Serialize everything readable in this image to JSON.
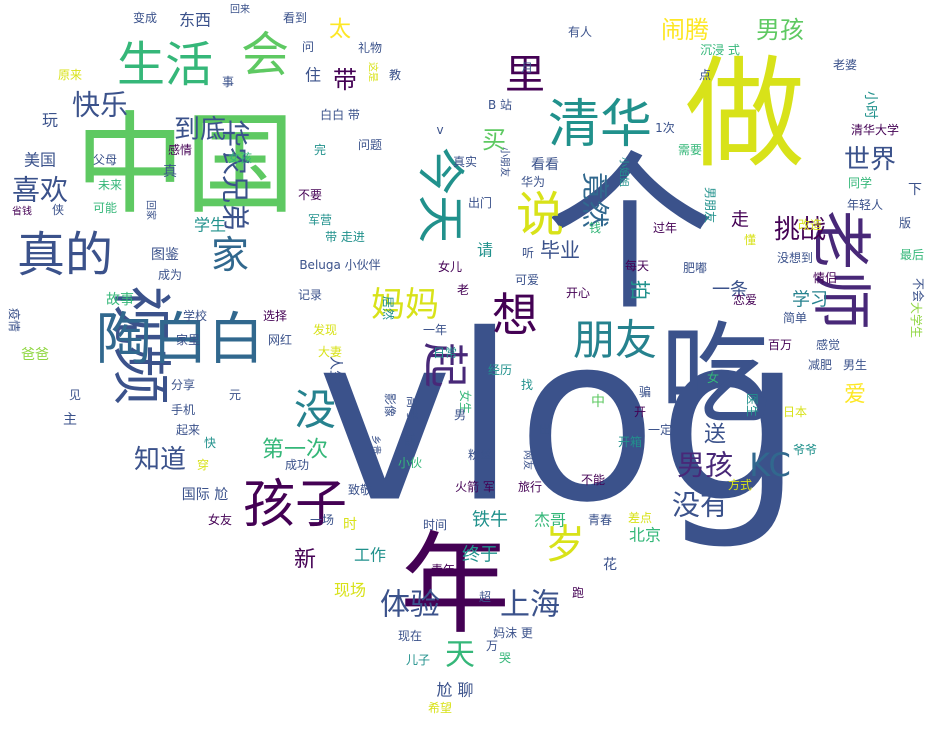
{
  "palette": [
    "#440154",
    "#3b528b",
    "#21918c",
    "#5ec962",
    "#fde725",
    "#482878",
    "#31688e",
    "#35b779",
    "#90d743",
    "#26828e"
  ],
  "words": [
    {
      "text": "vlog",
      "weight": 100,
      "color": "#3b528b"
    },
    {
      "text": "个",
      "weight": 88,
      "color": "#3b528b"
    },
    {
      "text": "中国",
      "weight": 86,
      "color": "#5ec962"
    },
    {
      "text": "做",
      "weight": 84,
      "color": "#d8e219"
    },
    {
      "text": "年",
      "weight": 80,
      "color": "#440154"
    },
    {
      "text": "吃",
      "weight": 78,
      "color": "#3b528b"
    },
    {
      "text": "老师",
      "weight": 60,
      "color": "#482878"
    },
    {
      "text": "视频",
      "weight": 58,
      "color": "#3b528b"
    },
    {
      "text": "陶白白",
      "weight": 56,
      "color": "#31688e"
    },
    {
      "text": "孩子",
      "weight": 54,
      "color": "#440154"
    },
    {
      "text": "清华",
      "weight": 52,
      "color": "#21918c"
    },
    {
      "text": "生活",
      "weight": 50,
      "color": "#35b779"
    },
    {
      "text": "会",
      "weight": 50,
      "color": "#5ec962"
    },
    {
      "text": "今天",
      "weight": 48,
      "color": "#21918c"
    },
    {
      "text": "想",
      "weight": 48,
      "color": "#440154"
    },
    {
      "text": "真的",
      "weight": 48,
      "color": "#3b528b"
    },
    {
      "text": "说",
      "weight": 48,
      "color": "#d8e219"
    },
    {
      "text": "起",
      "weight": 46,
      "color": "#482878"
    },
    {
      "text": "岁",
      "weight": 44,
      "color": "#d8e219"
    },
    {
      "text": "朋友",
      "weight": 44,
      "color": "#26828e"
    },
    {
      "text": "没",
      "weight": 44,
      "color": "#26828e"
    },
    {
      "text": "里",
      "weight": 42,
      "color": "#440154"
    },
    {
      "text": "家",
      "weight": 40,
      "color": "#31688e"
    },
    {
      "text": "妈妈",
      "weight": 36,
      "color": "#d8e219"
    },
    {
      "text": "KC",
      "weight": 34,
      "color": "#31688e"
    },
    {
      "text": "体验",
      "weight": 34,
      "color": "#3b528b"
    },
    {
      "text": "上海",
      "weight": 34,
      "color": "#3b528b"
    },
    {
      "text": "天",
      "weight": 34,
      "color": "#35b779"
    },
    {
      "text": "竟然",
      "weight": 32,
      "color": "#31688e"
    },
    {
      "text": "男孩",
      "weight": 32,
      "color": "#482878"
    },
    {
      "text": "没有",
      "weight": 32,
      "color": "#3b528b"
    },
    {
      "text": "快乐",
      "weight": 30,
      "color": "#3b528b"
    },
    {
      "text": "华农兄弟",
      "weight": 30,
      "color": "#3b528b"
    },
    {
      "text": "喜欢",
      "weight": 30,
      "color": "#3b528b"
    },
    {
      "text": "到底",
      "weight": 28,
      "color": "#3b528b"
    },
    {
      "text": "世界",
      "weight": 28,
      "color": "#3b528b"
    },
    {
      "text": "挑战",
      "weight": 28,
      "color": "#440154"
    },
    {
      "text": "知道",
      "weight": 28,
      "color": "#3b528b"
    },
    {
      "text": "闹腾",
      "weight": 26,
      "color": "#fde725"
    },
    {
      "text": "男孩",
      "weight": 26,
      "color": "#5ec962"
    },
    {
      "text": "买",
      "weight": 26,
      "color": "#5ec962"
    },
    {
      "text": "带",
      "weight": 26,
      "color": "#440154"
    },
    {
      "text": "太",
      "weight": 24,
      "color": "#fde725"
    },
    {
      "text": "爱",
      "weight": 24,
      "color": "#fde725"
    },
    {
      "text": "新",
      "weight": 24,
      "color": "#440154"
    },
    {
      "text": "送",
      "weight": 24,
      "color": "#3b528b"
    },
    {
      "text": "第一次",
      "weight": 22,
      "color": "#35b779"
    },
    {
      "text": "拍",
      "weight": 22,
      "color": "#21918c"
    },
    {
      "text": "毕业",
      "weight": 22,
      "color": "#3b528b"
    },
    {
      "text": "学习",
      "weight": 20,
      "color": "#26828e"
    },
    {
      "text": "一条",
      "weight": 20,
      "color": "#3b528b"
    },
    {
      "text": "铁牛",
      "weight": 20,
      "color": "#21918c"
    },
    {
      "text": "终于",
      "weight": 20,
      "color": "#21918c"
    },
    {
      "text": "走",
      "weight": 20,
      "color": "#440154"
    },
    {
      "text": "学生",
      "weight": 18,
      "color": "#21918c"
    },
    {
      "text": "玩",
      "weight": 18,
      "color": "#3b528b"
    },
    {
      "text": "住",
      "weight": 18,
      "color": "#3b528b"
    },
    {
      "text": "请",
      "weight": 18,
      "color": "#21918c"
    },
    {
      "text": "东西",
      "weight": 18,
      "color": "#3b528b"
    },
    {
      "text": "美国",
      "weight": 18,
      "color": "#3b528b"
    },
    {
      "text": "杰哥",
      "weight": 18,
      "color": "#35b779"
    },
    {
      "text": "工作",
      "weight": 18,
      "color": "#21918c"
    },
    {
      "text": "现场",
      "weight": 18,
      "color": "#d8e219"
    },
    {
      "text": "北京",
      "weight": 18,
      "color": "#35b779"
    },
    {
      "text": "尬 聊",
      "weight": 18,
      "color": "#3b528b"
    },
    {
      "text": "国际 尬",
      "weight": 16,
      "color": "#3b528b"
    },
    {
      "text": "故事",
      "weight": 16,
      "color": "#35b779"
    },
    {
      "text": "小时",
      "weight": 16,
      "color": "#21918c"
    },
    {
      "text": "看看",
      "weight": 16,
      "color": "#3b528b"
    },
    {
      "text": "人生",
      "weight": 16,
      "color": "#3b528b"
    },
    {
      "text": "图鉴",
      "weight": 16,
      "color": "#3b528b"
    },
    {
      "text": "爸爸",
      "weight": 14,
      "color": "#90d743"
    },
    {
      "text": "青春",
      "weight": 14,
      "color": "#3b528b"
    },
    {
      "text": "Beluga 小伙伴",
      "weight": 12,
      "color": "#3b528b"
    },
    {
      "text": "B 站",
      "weight": 14,
      "color": "#3b528b"
    },
    {
      "text": "网红",
      "weight": 14,
      "color": "#3b528b"
    },
    {
      "text": "选择",
      "weight": 14,
      "color": "#440154"
    },
    {
      "text": "学校",
      "weight": 14,
      "color": "#3b528b"
    },
    {
      "text": "家里",
      "weight": 14,
      "color": "#3b528b"
    },
    {
      "text": "发现",
      "weight": 14,
      "color": "#d8e219"
    },
    {
      "text": "大妻",
      "weight": 12,
      "color": "#d8e219"
    },
    {
      "text": "经历",
      "weight": 14,
      "color": "#21918c"
    },
    {
      "text": "粉丝",
      "weight": 12,
      "color": "#3b528b"
    },
    {
      "text": "火箭 军",
      "weight": 12,
      "color": "#440154"
    },
    {
      "text": "旅行",
      "weight": 12,
      "color": "#440154"
    },
    {
      "text": "不能",
      "weight": 12,
      "color": "#440154"
    },
    {
      "text": "成功",
      "weight": 12,
      "color": "#3b528b"
    },
    {
      "text": "致敬",
      "weight": 12,
      "color": "#3b528b"
    },
    {
      "text": "时间",
      "weight": 12,
      "color": "#3b528b"
    },
    {
      "text": "青年",
      "weight": 12,
      "color": "#440154"
    },
    {
      "text": "一场",
      "weight": 12,
      "color": "#3b528b"
    },
    {
      "text": "时",
      "weight": 14,
      "color": "#d8e219"
    },
    {
      "text": "女友",
      "weight": 12,
      "color": "#440154"
    },
    {
      "text": "穿",
      "weight": 12,
      "color": "#d8e219"
    },
    {
      "text": "快",
      "weight": 12,
      "color": "#21918c"
    },
    {
      "text": "分享",
      "weight": 12,
      "color": "#3b528b"
    },
    {
      "text": "主",
      "weight": 14,
      "color": "#3b528b"
    },
    {
      "text": "手机",
      "weight": 12,
      "color": "#3b528b"
    },
    {
      "text": "起来",
      "weight": 12,
      "color": "#3b528b"
    },
    {
      "text": "见",
      "weight": 12,
      "color": "#3b528b"
    },
    {
      "text": "元",
      "weight": 12,
      "color": "#3b528b"
    },
    {
      "text": "完",
      "weight": 12,
      "color": "#21918c"
    },
    {
      "text": "问题",
      "weight": 12,
      "color": "#3b528b"
    },
    {
      "text": "白白 带",
      "weight": 12,
      "color": "#3b528b"
    },
    {
      "text": "不要",
      "weight": 12,
      "color": "#440154"
    },
    {
      "text": "军营",
      "weight": 12,
      "color": "#21918c"
    },
    {
      "text": "带 走进",
      "weight": 12,
      "color": "#21918c"
    },
    {
      "text": "成为",
      "weight": 12,
      "color": "#3b528b"
    },
    {
      "text": "记录",
      "weight": 12,
      "color": "#3b528b"
    },
    {
      "text": "父母",
      "weight": 12,
      "color": "#3b528b"
    },
    {
      "text": "感情",
      "weight": 12,
      "color": "#440154"
    },
    {
      "text": "女孩",
      "weight": 12,
      "color": "#35b779"
    },
    {
      "text": "真",
      "weight": 14,
      "color": "#3b528b"
    },
    {
      "text": "未来",
      "weight": 12,
      "color": "#35b779"
    },
    {
      "text": "可能",
      "weight": 12,
      "color": "#35b779"
    },
    {
      "text": "省钱",
      "weight": 10,
      "color": "#440154"
    },
    {
      "text": "侠",
      "weight": 12,
      "color": "#3b528b"
    },
    {
      "text": "回家",
      "weight": 10,
      "color": "#3b528b"
    },
    {
      "text": "原来",
      "weight": 12,
      "color": "#d8e219"
    },
    {
      "text": "变成",
      "weight": 12,
      "color": "#3b528b"
    },
    {
      "text": "回来",
      "weight": 10,
      "color": "#3b528b"
    },
    {
      "text": "看到",
      "weight": 12,
      "color": "#3b528b"
    },
    {
      "text": "礼物",
      "weight": 12,
      "color": "#3b528b"
    },
    {
      "text": "问",
      "weight": 12,
      "color": "#3b528b"
    },
    {
      "text": "事",
      "weight": 12,
      "color": "#3b528b"
    },
    {
      "text": "教",
      "weight": 12,
      "color": "#3b528b"
    },
    {
      "text": "这是",
      "weight": 10,
      "color": "#d8e219"
    },
    {
      "text": "有人",
      "weight": 12,
      "color": "#3b528b"
    },
    {
      "text": "月",
      "weight": 12,
      "color": "#3b528b"
    },
    {
      "text": "沉浸 式",
      "weight": 12,
      "color": "#35b779"
    },
    {
      "text": "点",
      "weight": 12,
      "color": "#3b528b"
    },
    {
      "text": "老婆",
      "weight": 12,
      "color": "#3b528b"
    },
    {
      "text": "清华大学",
      "weight": 12,
      "color": "#440154"
    },
    {
      "text": "同学",
      "weight": 12,
      "color": "#35b779"
    },
    {
      "text": "年轻人",
      "weight": 12,
      "color": "#3b528b"
    },
    {
      "text": "下",
      "weight": 14,
      "color": "#3b528b"
    },
    {
      "text": "版",
      "weight": 12,
      "color": "#3b528b"
    },
    {
      "text": "需要",
      "weight": 12,
      "color": "#35b779"
    },
    {
      "text": "改造",
      "weight": 12,
      "color": "#d8e219"
    },
    {
      "text": "懂",
      "weight": 12,
      "color": "#d8e219"
    },
    {
      "text": "男朋友",
      "weight": 12,
      "color": "#21918c"
    },
    {
      "text": "没想到",
      "weight": 12,
      "color": "#3b528b"
    },
    {
      "text": "最后",
      "weight": 12,
      "color": "#35b779"
    },
    {
      "text": "情侣",
      "weight": 12,
      "color": "#440154"
    },
    {
      "text": "恋爱",
      "weight": 12,
      "color": "#440154"
    },
    {
      "text": "肥嘟",
      "weight": 12,
      "color": "#3b528b"
    },
    {
      "text": "每天",
      "weight": 12,
      "color": "#440154"
    },
    {
      "text": "过年",
      "weight": 12,
      "color": "#440154"
    },
    {
      "text": "大学生",
      "weight": 12,
      "color": "#90d743"
    },
    {
      "text": "不会",
      "weight": 12,
      "color": "#3b528b"
    },
    {
      "text": "简单",
      "weight": 12,
      "color": "#3b528b"
    },
    {
      "text": "百万",
      "weight": 12,
      "color": "#440154"
    },
    {
      "text": "感觉",
      "weight": 12,
      "color": "#3b528b"
    },
    {
      "text": "减肥",
      "weight": 12,
      "color": "#3b528b"
    },
    {
      "text": "男生",
      "weight": 12,
      "color": "#3b528b"
    },
    {
      "text": "医生",
      "weight": 12,
      "color": "#21918c"
    },
    {
      "text": "日本",
      "weight": 12,
      "color": "#d8e219"
    },
    {
      "text": "爷爷",
      "weight": 12,
      "color": "#21918c"
    },
    {
      "text": "方式",
      "weight": 12,
      "color": "#d8e219"
    },
    {
      "text": "差点",
      "weight": 12,
      "color": "#d8e219"
    },
    {
      "text": "花",
      "weight": 14,
      "color": "#3b528b"
    },
    {
      "text": "跑",
      "weight": 12,
      "color": "#440154"
    },
    {
      "text": "哭",
      "weight": 12,
      "color": "#35b779"
    },
    {
      "text": "妈沫 更",
      "weight": 12,
      "color": "#3b528b"
    },
    {
      "text": "万",
      "weight": 12,
      "color": "#3b528b"
    },
    {
      "text": "儿子",
      "weight": 12,
      "color": "#21918c"
    },
    {
      "text": "现在",
      "weight": 12,
      "color": "#3b528b"
    },
    {
      "text": "超",
      "weight": 12,
      "color": "#3b528b"
    },
    {
      "text": "希望",
      "weight": 12,
      "color": "#d8e219"
    },
    {
      "text": "小伙",
      "weight": 12,
      "color": "#35b779"
    },
    {
      "text": "网友",
      "weight": 10,
      "color": "#3b528b"
    },
    {
      "text": "出",
      "weight": 12,
      "color": "#3b528b"
    },
    {
      "text": "开箱",
      "weight": 12,
      "color": "#21918c"
    },
    {
      "text": "一定",
      "weight": 12,
      "color": "#3b528b"
    },
    {
      "text": "开",
      "weight": 12,
      "color": "#440154"
    },
    {
      "text": "骗",
      "weight": 12,
      "color": "#3b528b"
    },
    {
      "text": "女",
      "weight": 12,
      "color": "#35b779"
    },
    {
      "text": "一年",
      "weight": 12,
      "color": "#3b528b"
    },
    {
      "text": "开心",
      "weight": 12,
      "color": "#440154"
    },
    {
      "text": "老",
      "weight": 12,
      "color": "#440154"
    },
    {
      "text": "可爱",
      "weight": 12,
      "color": "#3b528b"
    },
    {
      "text": "女儿",
      "weight": 12,
      "color": "#440154"
    },
    {
      "text": "听",
      "weight": 12,
      "color": "#3b528b"
    },
    {
      "text": "钱",
      "weight": 12,
      "color": "#35b779"
    },
    {
      "text": "出门",
      "weight": 12,
      "color": "#3b528b"
    },
    {
      "text": "真实",
      "weight": 12,
      "color": "#3b528b"
    },
    {
      "text": "华为",
      "weight": 12,
      "color": "#3b528b"
    },
    {
      "text": "小朋友",
      "weight": 10,
      "color": "#3b528b"
    },
    {
      "text": "小姐姐",
      "weight": 10,
      "color": "#21918c"
    },
    {
      "text": "1次",
      "weight": 12,
      "color": "#3b528b"
    },
    {
      "text": "日常",
      "weight": 12,
      "color": "#21918c"
    },
    {
      "text": "居然",
      "weight": 12,
      "color": "#21918c"
    },
    {
      "text": "找",
      "weight": 12,
      "color": "#21918c"
    },
    {
      "text": "女生",
      "weight": 12,
      "color": "#35b779"
    },
    {
      "text": "男",
      "weight": 12,
      "color": "#3b528b"
    },
    {
      "text": "中",
      "weight": 14,
      "color": "#5ec962"
    },
    {
      "text": "影像",
      "weight": 12,
      "color": "#3b528b"
    },
    {
      "text": "高考",
      "weight": 12,
      "color": "#3b528b"
    },
    {
      "text": "乡贵",
      "weight": 10,
      "color": "#3b528b"
    },
    {
      "text": "前",
      "weight": 12,
      "color": "#3b528b"
    },
    {
      "text": "v",
      "weight": 12,
      "color": "#3b528b"
    },
    {
      "text": "疫情",
      "weight": 12,
      "color": "#3b528b"
    }
  ]
}
